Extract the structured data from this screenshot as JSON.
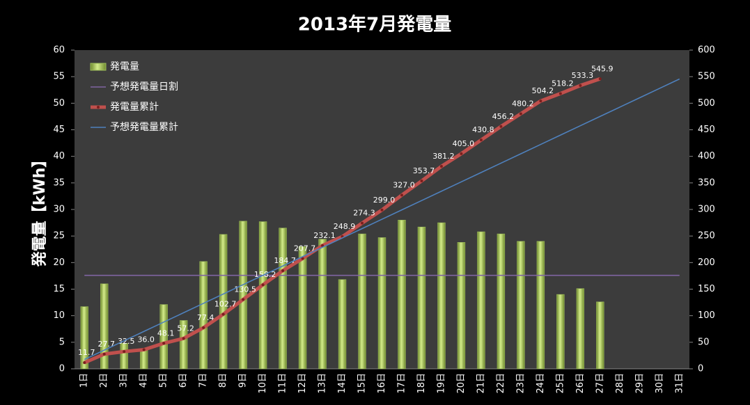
{
  "chart_data": {
    "type": "bar",
    "title": "2013年7月発電量",
    "y_label": "発電量【kWh】",
    "categories": [
      "1日",
      "2日",
      "3日",
      "4日",
      "5日",
      "6日",
      "7日",
      "8日",
      "9日",
      "10日",
      "11日",
      "12日",
      "13日",
      "14日",
      "15日",
      "16日",
      "17日",
      "18日",
      "19日",
      "20日",
      "21日",
      "22日",
      "23日",
      "24日",
      "25日",
      "26日",
      "27日",
      "28日",
      "29日",
      "30日",
      "31日"
    ],
    "ylim": [
      0,
      60
    ],
    "yticks": [
      0,
      5,
      10,
      15,
      20,
      25,
      30,
      35,
      40,
      45,
      50,
      55,
      60
    ],
    "y2lim": [
      0,
      600
    ],
    "y2ticks": [
      0,
      50,
      100,
      150,
      200,
      250,
      300,
      350,
      400,
      450,
      500,
      550,
      600
    ],
    "legend": "top-left",
    "series": [
      {
        "name": "発電量",
        "type": "bar",
        "color": "#9bbb59",
        "values": [
          11.7,
          16.0,
          4.8,
          3.5,
          12.1,
          9.1,
          20.2,
          25.3,
          27.8,
          27.7,
          26.5,
          23.0,
          24.4,
          16.8,
          25.4,
          24.7,
          28.0,
          26.7,
          27.5,
          23.8,
          25.8,
          25.4,
          24.0,
          24.0,
          14.0,
          15.1,
          12.6,
          null,
          null,
          null,
          null
        ]
      },
      {
        "name": "予想発電量日割",
        "type": "line",
        "color": "#8064a2",
        "values": [
          17.6,
          17.6,
          17.6,
          17.6,
          17.6,
          17.6,
          17.6,
          17.6,
          17.6,
          17.6,
          17.6,
          17.6,
          17.6,
          17.6,
          17.6,
          17.6,
          17.6,
          17.6,
          17.6,
          17.6,
          17.6,
          17.6,
          17.6,
          17.6,
          17.6,
          17.6,
          17.6,
          17.6,
          17.6,
          17.6,
          17.6
        ]
      },
      {
        "name": "発電量累計",
        "type": "line",
        "axis": "y2",
        "color": "#c0504d",
        "markers": true,
        "values": [
          11.7,
          27.7,
          32.5,
          36.0,
          48.1,
          57.2,
          77.4,
          102.7,
          130.5,
          158.2,
          184.7,
          207.7,
          232.1,
          248.9,
          274.3,
          299.0,
          327.0,
          353.7,
          381.2,
          405.0,
          430.8,
          456.2,
          480.2,
          504.2,
          518.2,
          533.3,
          545.9,
          null,
          null,
          null,
          null
        ],
        "value_labels": [
          "11.7",
          "27.7",
          "32.5",
          "36.0",
          "48.1",
          "57.2",
          "77.4",
          "102.7",
          "130.5",
          "158.2",
          "184.7",
          "207.7",
          "232.1",
          "248.9",
          "274.3",
          "299.0",
          "327.0",
          "353.7",
          "381.2",
          "405.0",
          "430.8",
          "456.2",
          "480.2",
          "504.2",
          "518.2",
          "533.3",
          "545.9",
          null,
          null,
          null,
          null
        ]
      },
      {
        "name": "予想発電量累計",
        "type": "line",
        "axis": "y2",
        "color": "#4f81bd",
        "values": [
          17.6,
          35.2,
          52.8,
          70.4,
          88,
          105.6,
          123.2,
          140.8,
          158.4,
          176,
          193.6,
          211.2,
          228.8,
          246.4,
          264,
          281.6,
          299.2,
          316.8,
          334.4,
          352,
          369.6,
          387.2,
          404.8,
          422.4,
          440,
          457.6,
          475.2,
          492.8,
          510.4,
          528,
          545.6
        ]
      }
    ]
  }
}
